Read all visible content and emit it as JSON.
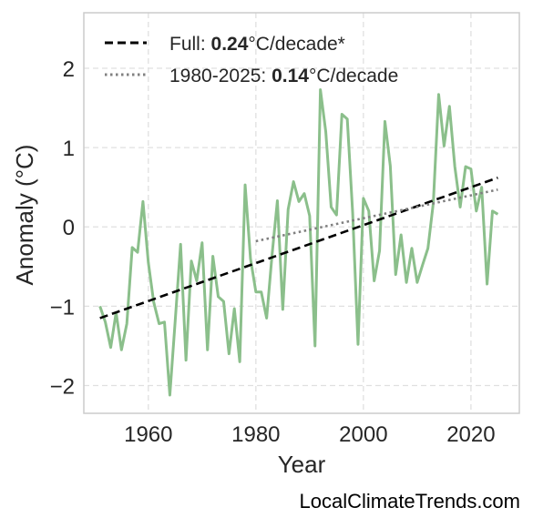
{
  "chart_data": {
    "type": "line",
    "xlabel": "Year",
    "ylabel": "Anomaly (°C)",
    "xlim": [
      1948,
      2029
    ],
    "ylim": [
      -2.35,
      2.7
    ],
    "xticks": [
      1960,
      1980,
      2000,
      2020
    ],
    "yticks": [
      -2,
      -1,
      0,
      1,
      2
    ],
    "ytick_labels": [
      "−2",
      "−1",
      "0",
      "1",
      "2"
    ],
    "grid": true,
    "legend_position": "top-left",
    "colors": {
      "data_line": "#8bbf8b",
      "full_trend": "#000000",
      "recent_trend": "#808080",
      "grid": "#e0e0e0",
      "frame": "#cccccc"
    },
    "x": [
      1951,
      1952,
      1953,
      1954,
      1955,
      1956,
      1957,
      1958,
      1959,
      1960,
      1961,
      1962,
      1963,
      1964,
      1965,
      1966,
      1967,
      1968,
      1969,
      1970,
      1971,
      1972,
      1973,
      1974,
      1975,
      1976,
      1977,
      1978,
      1979,
      1980,
      1981,
      1982,
      1983,
      1984,
      1985,
      1986,
      1987,
      1988,
      1989,
      1990,
      1991,
      1992,
      1993,
      1994,
      1995,
      1996,
      1997,
      1998,
      1999,
      2000,
      2001,
      2002,
      2003,
      2004,
      2005,
      2006,
      2007,
      2008,
      2009,
      2010,
      2011,
      2012,
      2013,
      2014,
      2015,
      2016,
      2017,
      2018,
      2019,
      2020,
      2021,
      2022,
      2023,
      2024,
      2025
    ],
    "series": [
      {
        "values": [
          -1.0,
          -1.2,
          -1.52,
          -1.08,
          -1.55,
          -1.22,
          -0.26,
          -0.32,
          0.32,
          -0.45,
          -0.95,
          -1.22,
          -1.2,
          -2.12,
          -1.18,
          -0.22,
          -1.68,
          -0.43,
          -0.68,
          -0.2,
          -1.55,
          -0.37,
          -0.88,
          -0.94,
          -1.6,
          -1.03,
          -1.7,
          0.53,
          -0.4,
          -0.82,
          -0.82,
          -1.15,
          -0.36,
          0.33,
          -1.04,
          0.22,
          0.57,
          0.32,
          0.42,
          0.14,
          -1.5,
          1.73,
          1.2,
          0.25,
          0.15,
          1.42,
          1.36,
          0.18,
          -1.48,
          0.36,
          0.2,
          -0.68,
          -0.3,
          1.33,
          0.77,
          -0.6,
          -0.1,
          -0.7,
          -0.27,
          -0.7,
          -0.48,
          -0.27,
          0.3,
          1.67,
          1.02,
          1.52,
          0.76,
          0.25,
          0.76,
          0.73,
          0.2,
          0.5,
          -0.72,
          0.2,
          0.16
        ]
      }
    ],
    "trends": [
      {
        "label_prefix": "Full: ",
        "label_value": "0.24",
        "label_suffix": "°C/decade*",
        "style": "dashed",
        "x": [
          1951,
          2025
        ],
        "y": [
          -1.15,
          0.62
        ]
      },
      {
        "label_prefix": "1980-2025: ",
        "label_value": "0.14",
        "label_suffix": "°C/decade",
        "style": "dotted",
        "x": [
          1980,
          2025
        ],
        "y": [
          -0.18,
          0.47
        ]
      }
    ]
  },
  "watermark": "LocalClimateTrends.com"
}
